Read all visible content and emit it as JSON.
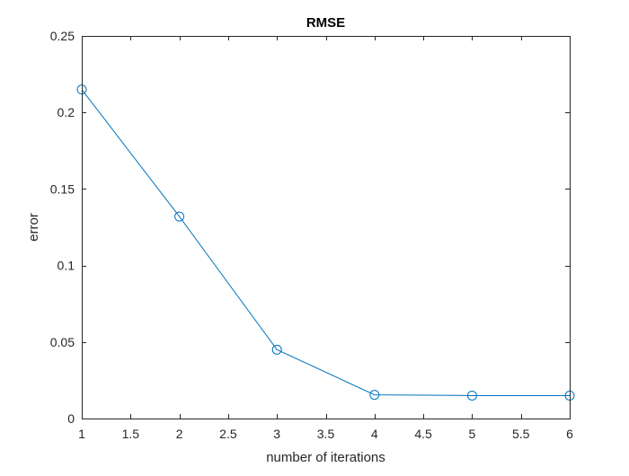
{
  "chart_data": {
    "type": "line",
    "title": "RMSE",
    "xlabel": "number of iterations",
    "ylabel": "error",
    "xlim": [
      1,
      6
    ],
    "ylim": [
      0,
      0.25
    ],
    "xticks": [
      1,
      1.5,
      2,
      2.5,
      3,
      3.5,
      4,
      4.5,
      5,
      5.5,
      6
    ],
    "yticks": [
      0,
      0.05,
      0.1,
      0.15,
      0.2,
      0.25
    ],
    "xtick_labels": [
      "1",
      "1.5",
      "2",
      "2.5",
      "3",
      "3.5",
      "4",
      "4.5",
      "5",
      "5.5",
      "6"
    ],
    "ytick_labels": [
      "0",
      "0.05",
      "0.1",
      "0.15",
      "0.2",
      "0.25"
    ],
    "grid": false,
    "marker": "circle",
    "line_color": "#0072BD",
    "series": [
      {
        "x": [
          1,
          2,
          3,
          4,
          5,
          6
        ],
        "y": [
          0.215,
          0.132,
          0.045,
          0.0155,
          0.015,
          0.015
        ]
      }
    ]
  }
}
